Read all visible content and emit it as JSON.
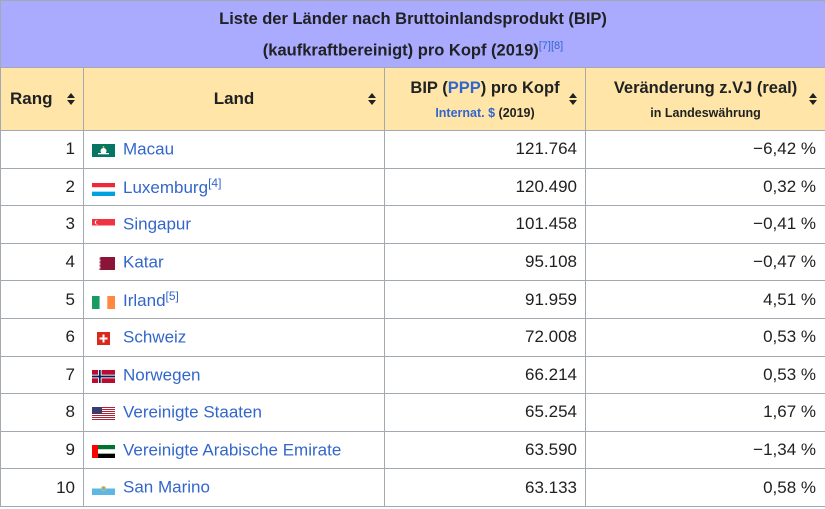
{
  "caption": {
    "line1": "Liste der Länder nach Bruttoinlandsprodukt (BIP)",
    "line2": "(kaufkraftbereinigt) pro Kopf (2019)",
    "refs": "[7][8]"
  },
  "headers": {
    "rank": "Rang",
    "land": "Land",
    "bip_prefix": "BIP (",
    "bip_link": "PPP",
    "bip_suffix": ") pro Kopf",
    "bip_sub_link": "Internat. $",
    "bip_sub_year": " (2019)",
    "change": "Veränderung z.VJ (real)",
    "change_sub": "in Landeswährung"
  },
  "rows": [
    {
      "rank": "1",
      "country": "Macau",
      "ref": "",
      "value": "121.764",
      "change": "−6,42 %",
      "flag": "macau-flag-icon"
    },
    {
      "rank": "2",
      "country": "Luxemburg",
      "ref": "[4]",
      "value": "120.490",
      "change": "0,32 %",
      "flag": "luxembourg-flag-icon"
    },
    {
      "rank": "3",
      "country": "Singapur",
      "ref": "",
      "value": "101.458",
      "change": "−0,41 %",
      "flag": "singapore-flag-icon"
    },
    {
      "rank": "4",
      "country": "Katar",
      "ref": "",
      "value": "95.108",
      "change": "−0,47 %",
      "flag": "qatar-flag-icon"
    },
    {
      "rank": "5",
      "country": "Irland",
      "ref": "[5]",
      "value": "91.959",
      "change": "4,51 %",
      "flag": "ireland-flag-icon"
    },
    {
      "rank": "6",
      "country": "Schweiz",
      "ref": "",
      "value": "72.008",
      "change": "0,53 %",
      "flag": "switzerland-flag-icon"
    },
    {
      "rank": "7",
      "country": "Norwegen",
      "ref": "",
      "value": "66.214",
      "change": "0,53 %",
      "flag": "norway-flag-icon"
    },
    {
      "rank": "8",
      "country": "Vereinigte Staaten",
      "ref": "",
      "value": "65.254",
      "change": "1,67 %",
      "flag": "usa-flag-icon"
    },
    {
      "rank": "9",
      "country": "Vereinigte Arabische Emirate",
      "ref": "",
      "value": "63.590",
      "change": "−1,34 %",
      "flag": "uae-flag-icon"
    },
    {
      "rank": "10",
      "country": "San Marino",
      "ref": "",
      "value": "63.133",
      "change": "0,58 %",
      "flag": "san-marino-flag-icon"
    }
  ],
  "colors": {
    "caption_bg": "#aaaaff",
    "header_bg": "#ffe6a8",
    "link": "#3366cc",
    "border": "#a2a9b1"
  }
}
